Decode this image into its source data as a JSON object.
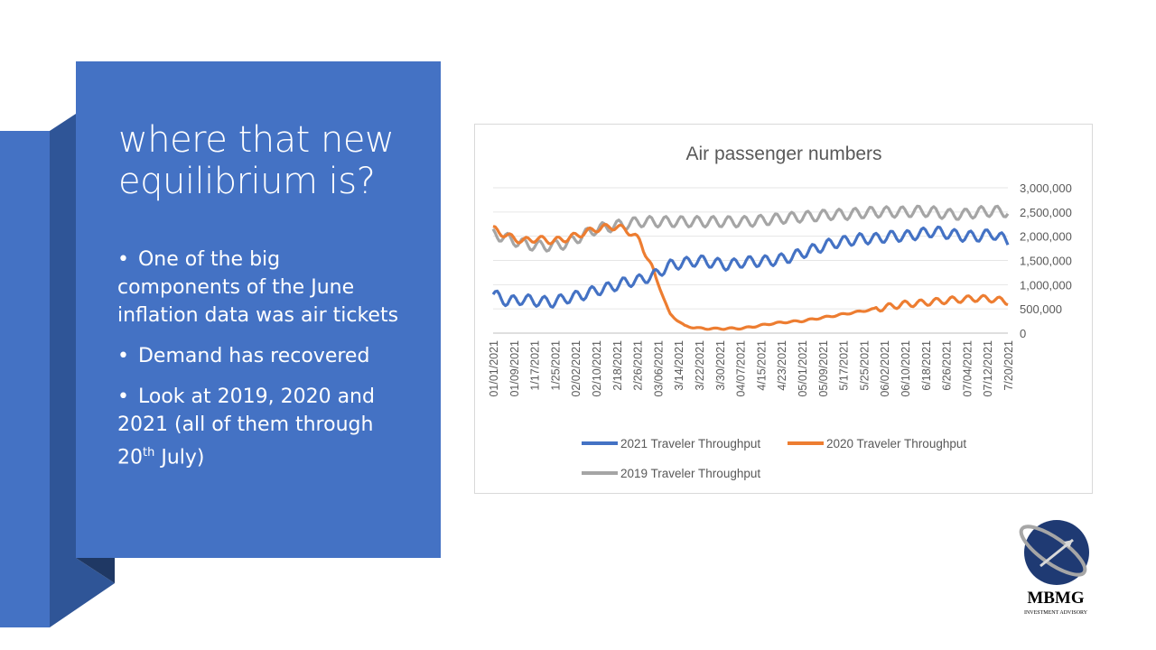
{
  "slide": {
    "title": "where that new equilibrium is?",
    "bullets": [
      {
        "text": "One of the big components of the June inflation data was air tickets"
      },
      {
        "text": "Demand has recovered"
      },
      {
        "text_before": "Look at 2019, 2020 and 2021 (all of them through 20",
        "superscript": "th",
        "text_after": " July)"
      }
    ],
    "logo": {
      "name": "MBMG",
      "subtitle": "INVESTMENT ADVISORY"
    }
  },
  "colors": {
    "panel": "#4472c4",
    "series_2021": "#4472c4",
    "series_2020": "#ed7d31",
    "series_2019": "#a5a5a5"
  },
  "chart_data": {
    "type": "line",
    "title": "Air passenger numbers",
    "x_tick_labels": [
      "01/01/2021",
      "01/09/2021",
      "1/17/2021",
      "1/25/2021",
      "02/02/2021",
      "02/10/2021",
      "2/18/2021",
      "2/26/2021",
      "03/06/2021",
      "3/14/2021",
      "3/22/2021",
      "3/30/2021",
      "04/07/2021",
      "4/15/2021",
      "4/23/2021",
      "05/01/2021",
      "05/09/2021",
      "5/17/2021",
      "5/25/2021",
      "06/02/2021",
      "06/10/2021",
      "6/18/2021",
      "6/26/2021",
      "07/04/2021",
      "07/12/2021",
      "7/20/2021"
    ],
    "y_axis_position": "right",
    "y_tick_labels": [
      "3,000,000",
      "2,500,000",
      "2,000,000",
      "1,500,000",
      "1,000,000",
      "500,000",
      "0"
    ],
    "ylim": [
      0,
      3000000
    ],
    "grid": true,
    "legend_position": "bottom",
    "series": [
      {
        "name": "2021 Traveler Throughput",
        "color": "#4472c4",
        "values": [
          800000,
          650000,
          700000,
          660000,
          640000,
          720000,
          780000,
          880000,
          950000,
          1050000,
          1100000,
          1200000,
          1400000,
          1450000,
          1500000,
          1450000,
          1400000,
          1470000,
          1480000,
          1500000,
          1550000,
          1650000,
          1750000,
          1850000,
          1900000,
          1950000,
          1950000,
          2000000,
          2000000,
          2050000,
          2100000,
          2050000,
          2000000,
          2000000,
          2050000,
          1900000
        ]
      },
      {
        "name": "2020 Traveler Throughput",
        "color": "#ed7d31",
        "values": [
          2150000,
          2000000,
          1900000,
          1950000,
          1900000,
          1950000,
          2050000,
          2150000,
          2200000,
          2150000,
          1900000,
          1200000,
          400000,
          150000,
          100000,
          90000,
          95000,
          100000,
          150000,
          200000,
          230000,
          250000,
          300000,
          350000,
          400000,
          450000,
          500000,
          550000,
          600000,
          620000,
          650000,
          680000,
          700000,
          720000,
          700000,
          650000
        ]
      },
      {
        "name": "2019 Traveler Throughput",
        "color": "#a5a5a5",
        "values": [
          2050000,
          1950000,
          1850000,
          1800000,
          1800000,
          1850000,
          2000000,
          2150000,
          2200000,
          2250000,
          2300000,
          2300000,
          2300000,
          2300000,
          2300000,
          2300000,
          2300000,
          2300000,
          2320000,
          2350000,
          2380000,
          2400000,
          2420000,
          2450000,
          2450000,
          2480000,
          2500000,
          2500000,
          2500000,
          2520000,
          2500000,
          2450000,
          2450000,
          2500000,
          2520000,
          2500000
        ]
      }
    ]
  }
}
